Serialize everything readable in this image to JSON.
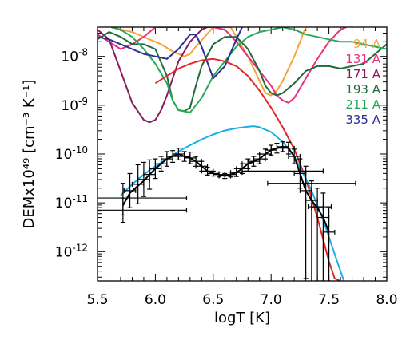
{
  "chart_data": {
    "type": "line",
    "xlabel": "logT [K]",
    "ylabel": "DEMx10⁴⁹ [cm⁻³ K⁻¹]",
    "xlim": [
      5.5,
      8.0
    ],
    "ylim_log10": [
      -12.6,
      -7.4
    ],
    "y_scale": "log",
    "x_ticks": [
      "5.5",
      "6.0",
      "6.5",
      "7.0",
      "7.5",
      "8.0"
    ],
    "y_tick_labels": [
      {
        "base": "10",
        "exp": "-8",
        "value": 1e-08
      },
      {
        "base": "10",
        "exp": "-9",
        "value": 1e-09
      },
      {
        "base": "10",
        "exp": "-10",
        "value": 1e-10
      },
      {
        "base": "10",
        "exp": "-11",
        "value": 1e-11
      },
      {
        "base": "10",
        "exp": "-12",
        "value": 1e-12
      }
    ],
    "legend": [
      {
        "label": "94 A",
        "color": "#f5a33a"
      },
      {
        "label": "131 A",
        "color": "#e8307e"
      },
      {
        "label": "171 A",
        "color": "#8b1a5c"
      },
      {
        "label": "193 A",
        "color": "#1f6b3a"
      },
      {
        "label": "211 A",
        "color": "#2aa85a"
      },
      {
        "label": "335 A",
        "color": "#2b2f8f"
      }
    ],
    "legend_position": "top-right",
    "series": [
      {
        "color": "#f5a33a",
        "x": [
          5.62,
          5.8,
          5.95,
          6.05,
          6.15,
          6.25,
          6.3,
          6.35,
          6.5,
          6.65,
          6.8,
          6.9,
          6.95,
          7.0,
          7.05,
          7.1,
          7.2,
          7.3
        ],
        "logy": [
          -7.4,
          -7.5,
          -7.65,
          -7.75,
          -7.9,
          -8.0,
          -7.95,
          -7.8,
          -7.4,
          -7.4,
          -8.0,
          -8.5,
          -8.75,
          -8.8,
          -8.7,
          -8.5,
          -8.0,
          -7.4
        ]
      },
      {
        "color": "#e8307e",
        "x": [
          5.5,
          5.6,
          5.7,
          5.8,
          5.9,
          6.0,
          6.1,
          6.3,
          6.5,
          6.6,
          6.7,
          6.8,
          6.9,
          7.0,
          7.05,
          7.1,
          7.15,
          7.2,
          7.3,
          7.4,
          7.5,
          7.6,
          7.65
        ],
        "logy": [
          -7.55,
          -7.7,
          -7.85,
          -7.75,
          -7.6,
          -7.4,
          -7.4,
          -7.4,
          -7.4,
          -7.45,
          -7.7,
          -8.0,
          -8.3,
          -8.6,
          -8.8,
          -8.9,
          -8.95,
          -8.85,
          -8.45,
          -8.05,
          -7.7,
          -7.45,
          -7.4
        ]
      },
      {
        "color": "#8b1a5c",
        "x": [
          5.5,
          5.6,
          5.7,
          5.8,
          5.9,
          5.95,
          6.0,
          6.05,
          6.1,
          6.2,
          6.3,
          6.4,
          6.45
        ],
        "logy": [
          -7.45,
          -7.65,
          -8.3,
          -8.95,
          -9.3,
          -9.35,
          -9.3,
          -9.1,
          -8.8,
          -8.1,
          -7.7,
          -7.45,
          -7.4
        ]
      },
      {
        "color": "#1f6b3a",
        "x": [
          5.5,
          5.6,
          5.7,
          5.8,
          5.9,
          6.0,
          6.1,
          6.15,
          6.2,
          6.25,
          6.3,
          6.35,
          6.4,
          6.5,
          6.6,
          6.7,
          6.8,
          6.9,
          6.95,
          7.0,
          7.05,
          7.1,
          7.2,
          7.3,
          7.4,
          7.5,
          7.6,
          7.7,
          7.8,
          7.9,
          8.0
        ],
        "logy": [
          -7.65,
          -7.5,
          -7.6,
          -7.75,
          -7.75,
          -7.85,
          -8.4,
          -8.9,
          -9.1,
          -9.12,
          -9.05,
          -8.6,
          -8.2,
          -7.75,
          -7.6,
          -7.6,
          -7.85,
          -8.3,
          -8.6,
          -8.75,
          -8.8,
          -8.75,
          -8.55,
          -8.3,
          -8.2,
          -8.2,
          -8.25,
          -8.2,
          -8.15,
          -7.95,
          -7.75
        ]
      },
      {
        "color": "#2aa85a",
        "x": [
          5.62,
          5.7,
          5.8,
          5.9,
          6.0,
          6.1,
          6.15,
          6.2,
          6.3,
          6.4,
          6.5,
          6.55,
          6.6,
          6.7,
          6.8,
          6.9,
          7.0,
          7.1,
          7.2,
          7.3,
          7.4,
          7.5,
          7.6,
          7.7,
          7.8,
          7.9,
          8.0
        ],
        "logy": [
          -7.4,
          -7.45,
          -7.6,
          -7.85,
          -8.15,
          -8.55,
          -8.9,
          -9.1,
          -9.15,
          -8.85,
          -8.4,
          -8.25,
          -8.1,
          -7.8,
          -7.6,
          -7.5,
          -7.45,
          -7.4,
          -7.45,
          -7.55,
          -7.6,
          -7.65,
          -7.7,
          -7.7,
          -7.75,
          -7.8,
          -7.85
        ]
      },
      {
        "color": "#2b2f8f",
        "x": [
          5.5,
          5.6,
          5.7,
          5.8,
          5.9,
          6.0,
          6.1,
          6.2,
          6.3,
          6.35,
          6.4,
          6.5,
          6.6,
          6.7,
          6.75
        ],
        "logy": [
          -7.6,
          -7.65,
          -7.75,
          -7.85,
          -7.95,
          -8.0,
          -8.05,
          -7.85,
          -7.55,
          -7.55,
          -7.8,
          -8.45,
          -8.2,
          -7.65,
          -7.4
        ]
      },
      {
        "color": "#e02828",
        "x": [
          6.0,
          6.1,
          6.2,
          6.3,
          6.4,
          6.5,
          6.6,
          6.7,
          6.8,
          6.9,
          7.0,
          7.1,
          7.2,
          7.3,
          7.4,
          7.45,
          7.5,
          7.55,
          7.6
        ],
        "logy": [
          -8.55,
          -8.4,
          -8.25,
          -8.15,
          -8.08,
          -8.05,
          -8.1,
          -8.2,
          -8.4,
          -8.7,
          -9.05,
          -9.45,
          -9.9,
          -10.5,
          -11.3,
          -11.75,
          -12.2,
          -12.55,
          -12.6
        ]
      },
      {
        "color": "#1eaee6",
        "x": [
          5.7,
          5.8,
          5.9,
          6.0,
          6.1,
          6.2,
          6.3,
          6.4,
          6.5,
          6.6,
          6.7,
          6.8,
          6.85,
          6.9,
          7.0,
          7.1,
          7.2,
          7.3,
          7.35,
          7.4,
          7.45,
          7.5,
          7.55,
          7.6,
          7.63
        ],
        "logy": [
          -10.85,
          -10.62,
          -10.42,
          -10.25,
          -10.1,
          -9.95,
          -9.82,
          -9.7,
          -9.6,
          -9.52,
          -9.47,
          -9.44,
          -9.43,
          -9.45,
          -9.55,
          -9.75,
          -10.05,
          -10.5,
          -10.75,
          -11.05,
          -11.35,
          -11.7,
          -12.05,
          -12.4,
          -12.6
        ]
      },
      {
        "color": "#000000",
        "x": [
          5.72,
          5.78,
          5.85,
          5.9,
          5.95,
          6.0,
          6.05,
          6.1,
          6.15,
          6.2,
          6.25,
          6.3,
          6.35,
          6.4,
          6.45,
          6.5,
          6.55,
          6.6,
          6.65,
          6.7,
          6.75,
          6.8,
          6.85,
          6.9,
          6.95,
          7.0,
          7.05,
          7.1,
          7.15,
          7.2,
          7.25,
          7.3,
          7.35,
          7.4,
          7.45,
          7.5
        ],
        "logy": [
          -11.05,
          -10.8,
          -10.65,
          -10.55,
          -10.42,
          -10.3,
          -10.2,
          -10.1,
          -10.05,
          -10.0,
          -10.05,
          -10.08,
          -10.15,
          -10.25,
          -10.35,
          -10.4,
          -10.42,
          -10.45,
          -10.42,
          -10.38,
          -10.3,
          -10.2,
          -10.15,
          -10.1,
          -10.0,
          -9.92,
          -9.88,
          -9.85,
          -9.88,
          -10.05,
          -10.4,
          -10.75,
          -10.95,
          -11.1,
          -11.3,
          -11.6
        ]
      }
    ],
    "points": [
      {
        "x": 5.72,
        "logy": -11.15,
        "xerr": 0.55,
        "yerr": [
          0.25,
          0.25
        ]
      },
      {
        "x": 5.72,
        "logy": -10.9,
        "xerr": 0.55,
        "yerr": [
          0.3,
          0.35
        ]
      },
      {
        "x": 5.78,
        "logy": -10.75,
        "xerr": 0.05,
        "yerr": [
          0.35,
          0.35
        ]
      },
      {
        "x": 5.85,
        "logy": -10.62,
        "xerr": 0.05,
        "yerr": [
          0.4,
          0.4
        ]
      },
      {
        "x": 5.9,
        "logy": -10.52,
        "xerr": 0.05,
        "yerr": [
          0.35,
          0.35
        ]
      },
      {
        "x": 5.95,
        "logy": -10.42,
        "xerr": 0.05,
        "yerr": [
          0.3,
          0.3
        ]
      },
      {
        "x": 6.0,
        "logy": -10.3,
        "xerr": 0.05,
        "yerr": [
          0.2,
          0.2
        ]
      },
      {
        "x": 6.05,
        "logy": -10.2,
        "xerr": 0.05,
        "yerr": [
          0.15,
          0.15
        ]
      },
      {
        "x": 6.1,
        "logy": -10.1,
        "xerr": 0.05,
        "yerr": [
          0.15,
          0.15
        ]
      },
      {
        "x": 6.15,
        "logy": -10.05,
        "xerr": 0.05,
        "yerr": [
          0.12,
          0.12
        ]
      },
      {
        "x": 6.2,
        "logy": -10.0,
        "xerr": 0.05,
        "yerr": [
          0.12,
          0.12
        ]
      },
      {
        "x": 6.25,
        "logy": -10.05,
        "xerr": 0.05,
        "yerr": [
          0.1,
          0.1
        ]
      },
      {
        "x": 6.3,
        "logy": -10.08,
        "xerr": 0.05,
        "yerr": [
          0.12,
          0.12
        ]
      },
      {
        "x": 6.35,
        "logy": -10.15,
        "xerr": 0.05,
        "yerr": [
          0.1,
          0.1
        ]
      },
      {
        "x": 6.4,
        "logy": -10.25,
        "xerr": 0.05,
        "yerr": [
          0.1,
          0.1
        ]
      },
      {
        "x": 6.45,
        "logy": -10.35,
        "xerr": 0.05,
        "yerr": [
          0.08,
          0.08
        ]
      },
      {
        "x": 6.5,
        "logy": -10.4,
        "xerr": 0.05,
        "yerr": [
          0.05,
          0.05
        ]
      },
      {
        "x": 6.55,
        "logy": -10.42,
        "xerr": 0.05,
        "yerr": [
          0.05,
          0.05
        ]
      },
      {
        "x": 6.6,
        "logy": -10.45,
        "xerr": 0.05,
        "yerr": [
          0.05,
          0.05
        ]
      },
      {
        "x": 6.65,
        "logy": -10.42,
        "xerr": 0.05,
        "yerr": [
          0.05,
          0.05
        ]
      },
      {
        "x": 6.7,
        "logy": -10.38,
        "xerr": 0.05,
        "yerr": [
          0.08,
          0.08
        ]
      },
      {
        "x": 6.75,
        "logy": -10.3,
        "xerr": 0.05,
        "yerr": [
          0.1,
          0.1
        ]
      },
      {
        "x": 6.8,
        "logy": -10.2,
        "xerr": 0.05,
        "yerr": [
          0.1,
          0.1
        ]
      },
      {
        "x": 6.85,
        "logy": -10.15,
        "xerr": 0.05,
        "yerr": [
          0.1,
          0.1
        ]
      },
      {
        "x": 6.9,
        "logy": -10.1,
        "xerr": 0.05,
        "yerr": [
          0.1,
          0.1
        ]
      },
      {
        "x": 6.95,
        "logy": -10.0,
        "xerr": 0.05,
        "yerr": [
          0.1,
          0.1
        ]
      },
      {
        "x": 7.0,
        "logy": -9.92,
        "xerr": 0.05,
        "yerr": [
          0.1,
          0.1
        ]
      },
      {
        "x": 7.05,
        "logy": -9.88,
        "xerr": 0.05,
        "yerr": [
          0.1,
          0.1
        ]
      },
      {
        "x": 7.1,
        "logy": -9.85,
        "xerr": 0.05,
        "yerr": [
          0.1,
          0.1
        ]
      },
      {
        "x": 7.15,
        "logy": -9.88,
        "xerr": 0.05,
        "yerr": [
          0.12,
          0.12
        ]
      },
      {
        "x": 7.2,
        "logy": -10.05,
        "xerr": 0.05,
        "yerr": [
          0.15,
          0.15
        ]
      },
      {
        "x": 7.25,
        "logy": -10.4,
        "xerr": 0.05,
        "yerr": [
          0.3,
          0.3
        ]
      },
      {
        "x": 7.3,
        "logy": -10.75,
        "xerr": 0.05,
        "yerr": [
          0.5,
          1.8
        ]
      },
      {
        "x": 7.35,
        "logy": -10.95,
        "xerr": 0.05,
        "yerr": [
          0.4,
          1.7
        ]
      },
      {
        "x": 7.4,
        "logy": -11.1,
        "xerr": 0.05,
        "yerr": [
          0.4,
          1.5
        ]
      },
      {
        "x": 7.45,
        "logy": -11.3,
        "xerr": 0.05,
        "yerr": [
          0.5,
          1.3
        ]
      },
      {
        "x": 7.5,
        "logy": -11.6,
        "xerr": 0.05,
        "yerr": [
          0.5,
          1.0
        ]
      },
      {
        "x": 7.35,
        "logy": -10.6,
        "xerr": 0.38,
        "yerr": [
          0.0,
          0.0
        ]
      },
      {
        "x": 7.1,
        "logy": -10.35,
        "xerr": 0.35,
        "yerr": [
          0.0,
          0.0
        ]
      },
      {
        "x": 7.42,
        "logy": -11.08,
        "xerr": 0.1,
        "yerr": [
          0.0,
          0.0
        ]
      }
    ]
  }
}
